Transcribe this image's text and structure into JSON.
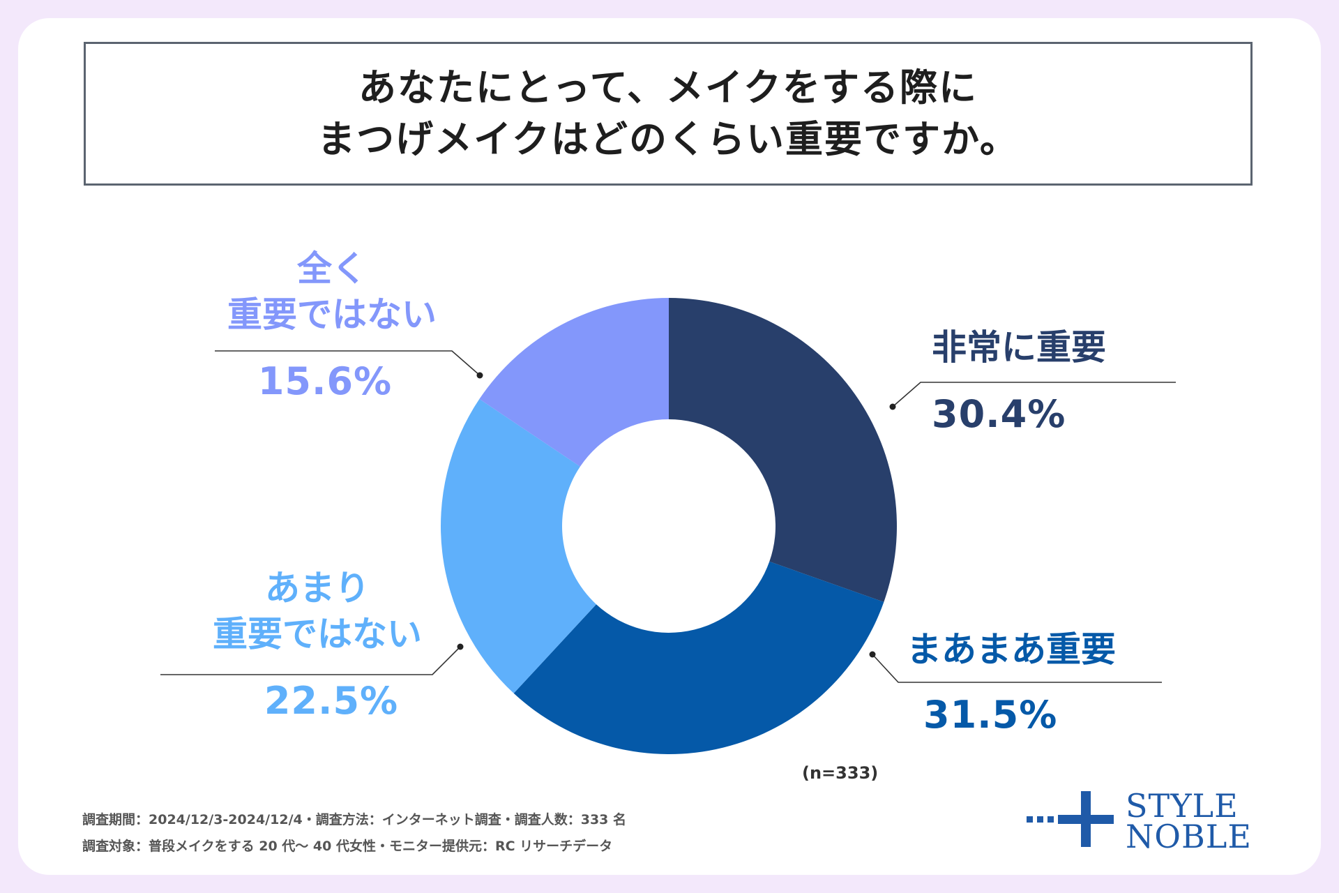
{
  "title": {
    "line1": "あなたにとって、メイクをする際に",
    "line2": "まつげメイクはどのくらい重要ですか。"
  },
  "chart_data": {
    "type": "pie",
    "variant": "donut",
    "title": "あなたにとって、メイクをする際に まつげメイクはどのくらい重要ですか。",
    "categories": [
      "非常に重要",
      "まあまあ重要",
      "あまり重要ではない",
      "全く重要ではない"
    ],
    "values": [
      30.4,
      31.5,
      22.5,
      15.6
    ],
    "value_labels": [
      "30.4%",
      "31.5%",
      "22.5%",
      "15.6%"
    ],
    "colors": [
      "#283f6b",
      "#0559a8",
      "#5fb0fb",
      "#8397fb"
    ],
    "n_note": "(n=333)"
  },
  "labels": {
    "very": {
      "name": "非常に重要",
      "pct": "30.4%"
    },
    "somewhat": {
      "name": "まあまあ重要",
      "pct": "31.5%"
    },
    "not_much": {
      "name1": "あまり",
      "name2": "重要ではない",
      "pct": "22.5%"
    },
    "not_at_all": {
      "name1": "全く",
      "name2": "重要ではない",
      "pct": "15.6%"
    }
  },
  "footer": {
    "line1": "調査期間：2024/12/3-2024/12/4・調査方法：インターネット調査・調査人数：333 名",
    "line2": "調査対象：普段メイクをする 20 代〜 40 代女性・モニター提供元：RC リサーチデータ"
  },
  "logo": {
    "line1": "STYLE",
    "line2": "NOBLE",
    "color": "#1f5aa8"
  }
}
